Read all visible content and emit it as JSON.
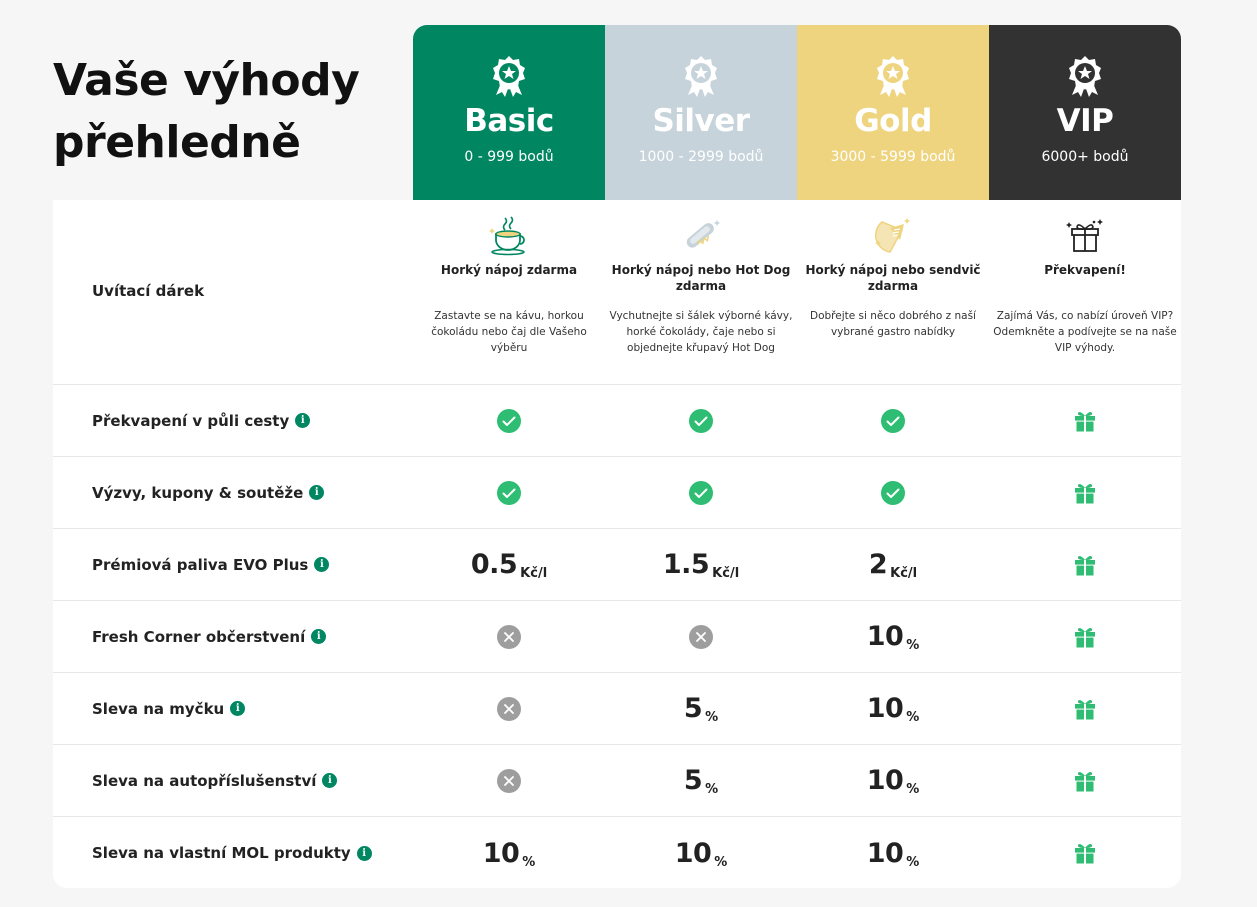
{
  "title": {
    "line1": "Vaše výhody",
    "line2": "přehledně"
  },
  "tiers": [
    {
      "name": "Basic",
      "range": "0 - 999 bodů",
      "color": "#008761"
    },
    {
      "name": "Silver",
      "range": "1000 - 2999 bodů",
      "color": "#c6d3da"
    },
    {
      "name": "Gold",
      "range": "3000 - 5999 bodů",
      "color": "#efd47f"
    },
    {
      "name": "VIP",
      "range": "6000+ bodů",
      "color": "#323232"
    }
  ],
  "welcome": {
    "label": "Uvítací dárek",
    "gifts": [
      {
        "icon": "coffee-cup-icon",
        "title": "Horký nápoj zdarma",
        "desc": "Zastavte se na kávu, horkou čokoládu nebo čaj dle Vašeho výběru"
      },
      {
        "icon": "hot-dog-icon",
        "title": "Horký nápoj nebo Hot Dog zdarma",
        "desc": "Vychutnejte si šálek výborné kávy, horké čokolády, čaje nebo si objednejte křupavý Hot Dog"
      },
      {
        "icon": "sandwich-icon",
        "title": "Horký nápoj nebo sendvič zdarma",
        "desc": "Dobřejte si něco dobrého z naší vybrané gastro nabídky"
      },
      {
        "icon": "gift-box-icon",
        "title": "Překvapení!",
        "desc": "Zajímá Vás, co nabízí úroveň VIP? Odemkněte a podívejte se na naše VIP výhody."
      }
    ]
  },
  "rows": [
    {
      "label": "Překvapení v půli cesty",
      "cells": [
        {
          "type": "check"
        },
        {
          "type": "check"
        },
        {
          "type": "check"
        },
        {
          "type": "gift"
        }
      ]
    },
    {
      "label": "Výzvy, kupony & soutěže",
      "cells": [
        {
          "type": "check"
        },
        {
          "type": "check"
        },
        {
          "type": "check"
        },
        {
          "type": "gift"
        }
      ]
    },
    {
      "label": "Prémiová paliva EVO Plus",
      "cells": [
        {
          "type": "num",
          "value": "0.5",
          "unit": "Kč/l"
        },
        {
          "type": "num",
          "value": "1.5",
          "unit": "Kč/l"
        },
        {
          "type": "num",
          "value": "2",
          "unit": "Kč/l"
        },
        {
          "type": "gift"
        }
      ]
    },
    {
      "label": "Fresh Corner občerstvení",
      "cells": [
        {
          "type": "cross"
        },
        {
          "type": "cross"
        },
        {
          "type": "num",
          "value": "10",
          "unit": "%"
        },
        {
          "type": "gift"
        }
      ]
    },
    {
      "label": "Sleva na myčku",
      "cells": [
        {
          "type": "cross"
        },
        {
          "type": "num",
          "value": "5",
          "unit": "%"
        },
        {
          "type": "num",
          "value": "10",
          "unit": "%"
        },
        {
          "type": "gift"
        }
      ]
    },
    {
      "label": "Sleva na autopříslušenství",
      "cells": [
        {
          "type": "cross"
        },
        {
          "type": "num",
          "value": "5",
          "unit": "%"
        },
        {
          "type": "num",
          "value": "10",
          "unit": "%"
        },
        {
          "type": "gift"
        }
      ]
    },
    {
      "label": "Sleva na vlastní MOL produkty",
      "cells": [
        {
          "type": "num",
          "value": "10",
          "unit": "%"
        },
        {
          "type": "num",
          "value": "10",
          "unit": "%"
        },
        {
          "type": "num",
          "value": "10",
          "unit": "%"
        },
        {
          "type": "gift"
        }
      ]
    }
  ],
  "colors": {
    "check": "#2ebd73",
    "cross": "#9e9e9e",
    "gift": "#2ebd73",
    "info": "#008761"
  }
}
